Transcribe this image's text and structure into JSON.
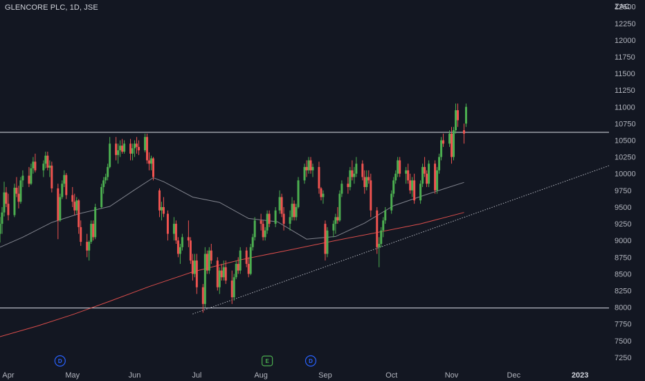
{
  "symbol_title": "GLENCORE PLC, 1D, JSE",
  "currency": "ZAC",
  "colors": {
    "background": "#131722",
    "up": "#26a69a",
    "up_body": "#4caf50",
    "down": "#ef5350",
    "ma_gray": "#9598a1",
    "ma_red": "#ef5350",
    "level_line": "#e0e3eb",
    "trendline": "#b2b5be",
    "text": "#b2b5be",
    "dividend_badge": "#2962ff",
    "earnings_badge": "#4caf50"
  },
  "chart_data": {
    "type": "candlestick",
    "title": "GLENCORE PLC, 1D, JSE",
    "ylabel": "ZAC",
    "y_ticks": [
      7250,
      7500,
      7750,
      8000,
      8250,
      8500,
      8750,
      9000,
      9250,
      9500,
      9750,
      10000,
      10250,
      10500,
      10750,
      11000,
      11250,
      11500,
      11750,
      12000,
      12250,
      12500
    ],
    "ylim": [
      7125,
      12600
    ],
    "x_ticks": [
      {
        "label": "Apr",
        "date": "2022-04-01"
      },
      {
        "label": "May",
        "date": "2022-05-02"
      },
      {
        "label": "Jun",
        "date": "2022-06-01"
      },
      {
        "label": "Jul",
        "date": "2022-07-01"
      },
      {
        "label": "Aug",
        "date": "2022-08-01"
      },
      {
        "label": "Sep",
        "date": "2022-09-01"
      },
      {
        "label": "Oct",
        "date": "2022-10-03"
      },
      {
        "label": "Nov",
        "date": "2022-11-01"
      },
      {
        "label": "Dec",
        "date": "2022-12-01"
      },
      {
        "label": "2023",
        "date": "2023-01-02",
        "year": true
      }
    ],
    "xlim": [
      "2022-03-28",
      "2023-01-16"
    ],
    "grid": false,
    "horizontal_levels": [
      10620,
      7990
    ],
    "trendline": {
      "start": {
        "date": "2022-06-29",
        "price": 7900
      },
      "end": {
        "date": "2023-01-16",
        "price": 10120
      }
    },
    "events": [
      {
        "type": "dividend",
        "label": "D",
        "date": "2022-04-26"
      },
      {
        "type": "earnings",
        "label": "E",
        "date": "2022-08-04"
      },
      {
        "type": "dividend",
        "label": "D",
        "date": "2022-08-25"
      }
    ],
    "series": [
      {
        "kind": "sma",
        "color": "#9598a1",
        "points": [
          [
            "2022-03-28",
            8900
          ],
          [
            "2022-04-08",
            9050
          ],
          [
            "2022-04-22",
            9270
          ],
          [
            "2022-05-05",
            9400
          ],
          [
            "2022-05-20",
            9510
          ],
          [
            "2022-06-01",
            9760
          ],
          [
            "2022-06-10",
            9940
          ],
          [
            "2022-06-15",
            9880
          ],
          [
            "2022-06-29",
            9650
          ],
          [
            "2022-07-12",
            9570
          ],
          [
            "2022-07-26",
            9330
          ],
          [
            "2022-08-09",
            9280
          ],
          [
            "2022-08-23",
            9020
          ],
          [
            "2022-09-06",
            9060
          ],
          [
            "2022-09-20",
            9260
          ],
          [
            "2022-10-04",
            9520
          ],
          [
            "2022-10-19",
            9680
          ],
          [
            "2022-10-31",
            9800
          ],
          [
            "2022-11-07",
            9870
          ]
        ]
      },
      {
        "kind": "sma",
        "color": "#ef5350",
        "points": [
          [
            "2022-03-28",
            7560
          ],
          [
            "2022-04-15",
            7720
          ],
          [
            "2022-05-02",
            7890
          ],
          [
            "2022-05-20",
            8090
          ],
          [
            "2022-06-08",
            8310
          ],
          [
            "2022-06-29",
            8530
          ],
          [
            "2022-07-22",
            8710
          ],
          [
            "2022-08-15",
            8860
          ],
          [
            "2022-09-06",
            9000
          ],
          [
            "2022-09-26",
            9120
          ],
          [
            "2022-10-17",
            9250
          ],
          [
            "2022-11-07",
            9420
          ]
        ]
      }
    ],
    "candles": [
      [
        "2022-03-28",
        9100,
        9350,
        8970,
        9250
      ],
      [
        "2022-03-29",
        9250,
        9500,
        9100,
        9420
      ],
      [
        "2022-03-30",
        9420,
        9880,
        9360,
        9720
      ],
      [
        "2022-03-31",
        9720,
        9800,
        9500,
        9550
      ],
      [
        "2022-04-01",
        9550,
        9700,
        9300,
        9380
      ],
      [
        "2022-04-04",
        9380,
        9850,
        9350,
        9790
      ],
      [
        "2022-04-05",
        9790,
        9950,
        9650,
        9700
      ],
      [
        "2022-04-06",
        9700,
        9820,
        9480,
        9580
      ],
      [
        "2022-04-07",
        9580,
        9950,
        9550,
        9900
      ],
      [
        "2022-04-08",
        9900,
        10050,
        9800,
        9970
      ],
      [
        "2022-04-11",
        9970,
        10100,
        9800,
        9850
      ],
      [
        "2022-04-12",
        9850,
        10150,
        9830,
        10080
      ],
      [
        "2022-04-13",
        10080,
        10250,
        10000,
        10180
      ],
      [
        "2022-04-14",
        10180,
        10300,
        10020,
        10050
      ],
      [
        "2022-04-18",
        10050,
        10200,
        9950,
        10150
      ],
      [
        "2022-04-19",
        10150,
        10330,
        10080,
        10270
      ],
      [
        "2022-04-20",
        10270,
        10330,
        10050,
        10090
      ],
      [
        "2022-04-21",
        10090,
        10200,
        9950,
        10120
      ],
      [
        "2022-04-22",
        10120,
        10180,
        9720,
        9780
      ],
      [
        "2022-04-25",
        9780,
        9850,
        9020,
        9300
      ],
      [
        "2022-04-26",
        9300,
        9700,
        9280,
        9650
      ],
      [
        "2022-04-27",
        9650,
        9900,
        9620,
        9850
      ],
      [
        "2022-04-28",
        9850,
        10050,
        9800,
        9980
      ],
      [
        "2022-04-29",
        9980,
        10010,
        9620,
        9680
      ],
      [
        "2022-05-02",
        9680,
        9800,
        9500,
        9580
      ],
      [
        "2022-05-03",
        9580,
        9700,
        9380,
        9450
      ],
      [
        "2022-05-04",
        9450,
        9650,
        9400,
        9600
      ],
      [
        "2022-05-05",
        9600,
        9620,
        9100,
        9200
      ],
      [
        "2022-05-06",
        9200,
        9300,
        8920,
        8980
      ],
      [
        "2022-05-09",
        8980,
        9100,
        8750,
        8850
      ],
      [
        "2022-05-10",
        8850,
        9000,
        8700,
        8980
      ],
      [
        "2022-05-11",
        8980,
        9300,
        8950,
        9250
      ],
      [
        "2022-05-12",
        9250,
        9300,
        9000,
        9050
      ],
      [
        "2022-05-13",
        9050,
        9550,
        9020,
        9500
      ],
      [
        "2022-05-16",
        9500,
        9850,
        9480,
        9800
      ],
      [
        "2022-05-17",
        9800,
        9950,
        9700,
        9900
      ],
      [
        "2022-05-18",
        9900,
        10000,
        9850,
        9950
      ],
      [
        "2022-05-19",
        9950,
        10150,
        9900,
        10100
      ],
      [
        "2022-05-20",
        10100,
        10550,
        10080,
        10450
      ],
      [
        "2022-05-23",
        10450,
        10550,
        10200,
        10280
      ],
      [
        "2022-05-24",
        10280,
        10450,
        10150,
        10350
      ],
      [
        "2022-05-25",
        10350,
        10500,
        10250,
        10420
      ],
      [
        "2022-05-26",
        10420,
        10520,
        10300,
        10330
      ],
      [
        "2022-05-27",
        10330,
        10500,
        10300,
        10450
      ],
      [
        "2022-05-30",
        10450,
        10520,
        10200,
        10300
      ],
      [
        "2022-05-31",
        10300,
        10450,
        10200,
        10380
      ],
      [
        "2022-06-01",
        10380,
        10500,
        10250,
        10450
      ],
      [
        "2022-06-02",
        10450,
        10550,
        10300,
        10400
      ],
      [
        "2022-06-03",
        10400,
        10500,
        10280,
        10350
      ],
      [
        "2022-06-06",
        10350,
        10600,
        10320,
        10550
      ],
      [
        "2022-06-07",
        10550,
        10600,
        10150,
        10200
      ],
      [
        "2022-06-08",
        10200,
        10320,
        10050,
        10150
      ],
      [
        "2022-06-09",
        10150,
        10270,
        10050,
        10230
      ],
      [
        "2022-06-10",
        10230,
        10250,
        9900,
        9950
      ],
      [
        "2022-06-13",
        9750,
        9780,
        9350,
        9450
      ],
      [
        "2022-06-14",
        9450,
        9580,
        9300,
        9500
      ],
      [
        "2022-06-15",
        9500,
        9650,
        9350,
        9400
      ],
      [
        "2022-06-17",
        9400,
        9450,
        9000,
        9100
      ],
      [
        "2022-06-20",
        9100,
        9350,
        9000,
        9250
      ],
      [
        "2022-06-21",
        9250,
        9300,
        8950,
        9000
      ],
      [
        "2022-06-22",
        9000,
        9050,
        8750,
        8800
      ],
      [
        "2022-06-23",
        8800,
        8950,
        8650,
        8900
      ],
      [
        "2022-06-24",
        8900,
        9100,
        8850,
        9050
      ],
      [
        "2022-06-27",
        9050,
        9300,
        8900,
        9000
      ],
      [
        "2022-06-28",
        9000,
        9050,
        8650,
        8700
      ],
      [
        "2022-06-29",
        8700,
        8800,
        8400,
        8500
      ],
      [
        "2022-06-30",
        8500,
        8800,
        8450,
        8700
      ],
      [
        "2022-07-01",
        8700,
        8800,
        8200,
        8300
      ],
      [
        "2022-07-04",
        8300,
        8350,
        7920,
        8050
      ],
      [
        "2022-07-05",
        8050,
        8900,
        8000,
        8800
      ],
      [
        "2022-07-06",
        8800,
        8850,
        8500,
        8550
      ],
      [
        "2022-07-07",
        8550,
        8900,
        8500,
        8850
      ],
      [
        "2022-07-08",
        8850,
        8950,
        8650,
        8700
      ],
      [
        "2022-07-11",
        8700,
        8750,
        8250,
        8300
      ],
      [
        "2022-07-12",
        8300,
        8600,
        8200,
        8550
      ],
      [
        "2022-07-13",
        8550,
        8650,
        8400,
        8450
      ],
      [
        "2022-07-14",
        8450,
        8700,
        8400,
        8600
      ],
      [
        "2022-07-15",
        8600,
        8700,
        8350,
        8400
      ],
      [
        "2022-07-18",
        8400,
        8550,
        8050,
        8150
      ],
      [
        "2022-07-19",
        8150,
        8500,
        8100,
        8450
      ],
      [
        "2022-07-20",
        8450,
        8700,
        8420,
        8650
      ],
      [
        "2022-07-21",
        8650,
        8750,
        8500,
        8550
      ],
      [
        "2022-07-22",
        8550,
        8900,
        8500,
        8850
      ],
      [
        "2022-07-25",
        8850,
        8900,
        8600,
        8650
      ],
      [
        "2022-07-26",
        8650,
        8750,
        8450,
        8500
      ],
      [
        "2022-07-27",
        8500,
        8950,
        8480,
        8900
      ],
      [
        "2022-07-28",
        8900,
        9100,
        8850,
        9050
      ],
      [
        "2022-07-29",
        9050,
        9350,
        9000,
        9300
      ],
      [
        "2022-08-01",
        9300,
        9400,
        9150,
        9250
      ],
      [
        "2022-08-02",
        9250,
        9300,
        9000,
        9050
      ],
      [
        "2022-08-03",
        9050,
        9200,
        9000,
        9150
      ],
      [
        "2022-08-04",
        9150,
        9450,
        9100,
        9400
      ],
      [
        "2022-08-05",
        9400,
        9450,
        9200,
        9250
      ],
      [
        "2022-08-08",
        9250,
        9500,
        9200,
        9450
      ],
      [
        "2022-08-10",
        9450,
        9750,
        9400,
        9650
      ],
      [
        "2022-08-11",
        9650,
        9700,
        9350,
        9400
      ],
      [
        "2022-08-12",
        9400,
        9500,
        9150,
        9250
      ],
      [
        "2022-08-15",
        9250,
        9450,
        9150,
        9350
      ],
      [
        "2022-08-16",
        9350,
        9650,
        9300,
        9550
      ],
      [
        "2022-08-17",
        9550,
        9600,
        9300,
        9350
      ],
      [
        "2022-08-18",
        9350,
        9550,
        9300,
        9500
      ],
      [
        "2022-08-19",
        9500,
        9950,
        9480,
        9900
      ],
      [
        "2022-08-22",
        9900,
        10150,
        9850,
        10100
      ],
      [
        "2022-08-23",
        10100,
        10200,
        9950,
        10050
      ],
      [
        "2022-08-24",
        10050,
        10250,
        10000,
        10200
      ],
      [
        "2022-08-25",
        10200,
        10250,
        10000,
        10050
      ],
      [
        "2022-08-26",
        10050,
        10150,
        9950,
        10100
      ],
      [
        "2022-08-29",
        10100,
        10180,
        9700,
        9780
      ],
      [
        "2022-08-30",
        9780,
        9800,
        9600,
        9650
      ],
      [
        "2022-08-31",
        9650,
        9750,
        9550,
        9700
      ],
      [
        "2022-09-01",
        9250,
        9300,
        8700,
        8800
      ],
      [
        "2022-09-02",
        8800,
        9200,
        8750,
        9150
      ],
      [
        "2022-09-05",
        9150,
        9300,
        9050,
        9250
      ],
      [
        "2022-09-06",
        9250,
        9400,
        9100,
        9350
      ],
      [
        "2022-09-07",
        9350,
        9500,
        9250,
        9300
      ],
      [
        "2022-09-08",
        9300,
        9750,
        9280,
        9700
      ],
      [
        "2022-09-09",
        9700,
        9900,
        9650,
        9850
      ],
      [
        "2022-09-12",
        9850,
        9950,
        9700,
        9800
      ],
      [
        "2022-09-13",
        9800,
        10100,
        9750,
        10050
      ],
      [
        "2022-09-14",
        10050,
        10200,
        9900,
        9950
      ],
      [
        "2022-09-15",
        9950,
        10100,
        9850,
        10000
      ],
      [
        "2022-09-16",
        10000,
        10250,
        9950,
        10150
      ],
      [
        "2022-09-19",
        10150,
        10200,
        9900,
        9950
      ],
      [
        "2022-09-20",
        9950,
        10050,
        9700,
        9800
      ],
      [
        "2022-09-21",
        9800,
        10050,
        9750,
        9950
      ],
      [
        "2022-09-22",
        9950,
        10050,
        9850,
        9900
      ],
      [
        "2022-09-23",
        9900,
        10000,
        9350,
        9450
      ],
      [
        "2022-09-26",
        9450,
        9500,
        8800,
        8900
      ],
      [
        "2022-09-27",
        8900,
        9050,
        8600,
        8950
      ],
      [
        "2022-09-28",
        8950,
        9200,
        8900,
        9150
      ],
      [
        "2022-09-29",
        9150,
        9350,
        9050,
        9300
      ],
      [
        "2022-09-30",
        9300,
        9500,
        9250,
        9450
      ],
      [
        "2022-10-03",
        9450,
        9750,
        9400,
        9700
      ],
      [
        "2022-10-04",
        9700,
        9950,
        9650,
        9900
      ],
      [
        "2022-10-05",
        9900,
        10050,
        9850,
        10000
      ],
      [
        "2022-10-06",
        10000,
        10250,
        9950,
        10200
      ],
      [
        "2022-10-07",
        10200,
        10250,
        9950,
        10000
      ],
      [
        "2022-10-10",
        10000,
        10100,
        9850,
        10050
      ],
      [
        "2022-10-11",
        10050,
        10150,
        9850,
        9900
      ],
      [
        "2022-10-12",
        9900,
        10000,
        9700,
        9750
      ],
      [
        "2022-10-13",
        9750,
        9950,
        9650,
        9900
      ],
      [
        "2022-10-14",
        9900,
        10000,
        9550,
        9600
      ],
      [
        "2022-10-17",
        9600,
        9900,
        9550,
        9850
      ],
      [
        "2022-10-18",
        9850,
        10150,
        9800,
        10100
      ],
      [
        "2022-10-19",
        10100,
        10250,
        9950,
        10000
      ],
      [
        "2022-10-20",
        10000,
        10050,
        9800,
        9850
      ],
      [
        "2022-10-21",
        9850,
        10200,
        9800,
        10150
      ],
      [
        "2022-10-24",
        10150,
        10200,
        9700,
        9750
      ],
      [
        "2022-10-25",
        9750,
        10100,
        9700,
        10050
      ],
      [
        "2022-10-26",
        10050,
        10300,
        10000,
        10250
      ],
      [
        "2022-10-27",
        10250,
        10550,
        10200,
        10500
      ],
      [
        "2022-10-28",
        10500,
        10600,
        10400,
        10450
      ],
      [
        "2022-10-31",
        10450,
        10650,
        10400,
        10600
      ],
      [
        "2022-11-01",
        10600,
        10700,
        10150,
        10250
      ],
      [
        "2022-11-02",
        10250,
        10700,
        10200,
        10650
      ],
      [
        "2022-11-03",
        10650,
        11050,
        10600,
        10950
      ],
      [
        "2022-11-04",
        10950,
        11050,
        10700,
        10800
      ],
      [
        "2022-11-07",
        10650,
        10750,
        10450,
        10600
      ],
      [
        "2022-11-08",
        10750,
        11050,
        10700,
        11000
      ]
    ]
  }
}
